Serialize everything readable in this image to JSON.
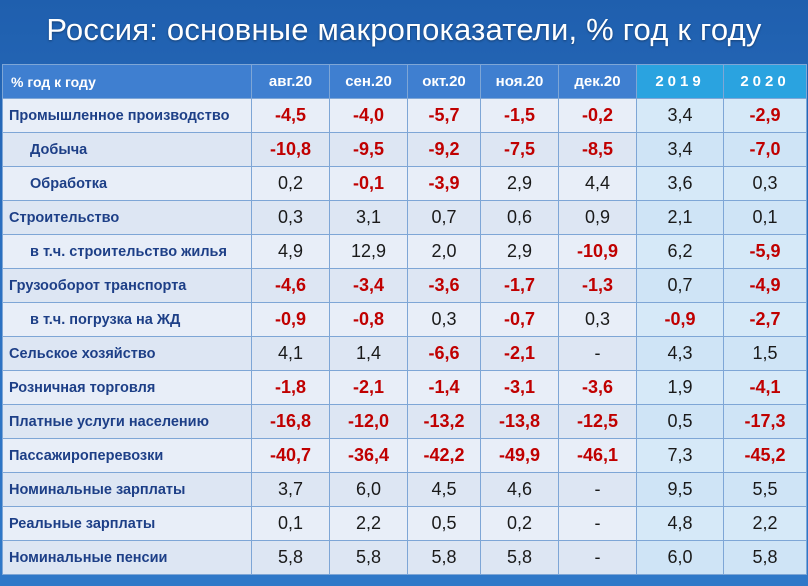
{
  "title": "Россия: основные макропоказатели, % год к году",
  "table": {
    "row_header": "% год к году",
    "columns": [
      "авг.20",
      "сен.20",
      "окт.20",
      "ноя.20",
      "дек.20",
      "2019",
      "2020"
    ],
    "year_columns": [
      5,
      6
    ],
    "rows": [
      {
        "label": "Промышленное производство",
        "indent": false,
        "values": [
          "-4,5",
          "-4,0",
          "-5,7",
          "-1,5",
          "-0,2",
          "3,4",
          "-2,9"
        ]
      },
      {
        "label": "Добыча",
        "indent": true,
        "values": [
          "-10,8",
          "-9,5",
          "-9,2",
          "-7,5",
          "-8,5",
          "3,4",
          "-7,0"
        ]
      },
      {
        "label": "Обработка",
        "indent": true,
        "values": [
          "0,2",
          "-0,1",
          "-3,9",
          "2,9",
          "4,4",
          "3,6",
          "0,3"
        ]
      },
      {
        "label": "Строительство",
        "indent": false,
        "values": [
          "0,3",
          "3,1",
          "0,7",
          "0,6",
          "0,9",
          "2,1",
          "0,1"
        ]
      },
      {
        "label": "в т.ч. строительство жилья",
        "indent": true,
        "values": [
          "4,9",
          "12,9",
          "2,0",
          "2,9",
          "-10,9",
          "6,2",
          "-5,9"
        ]
      },
      {
        "label": "Грузооборот транспорта",
        "indent": false,
        "values": [
          "-4,6",
          "-3,4",
          "-3,6",
          "-1,7",
          "-1,3",
          "0,7",
          "-4,9"
        ]
      },
      {
        "label": "в т.ч. погрузка на ЖД",
        "indent": true,
        "values": [
          "-0,9",
          "-0,8",
          "0,3",
          "-0,7",
          "0,3",
          "-0,9",
          "-2,7"
        ]
      },
      {
        "label": "Сельское хозяйство",
        "indent": false,
        "values": [
          "4,1",
          "1,4",
          "-6,6",
          "-2,1",
          "-",
          "4,3",
          "1,5"
        ]
      },
      {
        "label": "Розничная торговля",
        "indent": false,
        "values": [
          "-1,8",
          "-2,1",
          "-1,4",
          "-3,1",
          "-3,6",
          "1,9",
          "-4,1"
        ]
      },
      {
        "label": "Платные услуги населению",
        "indent": false,
        "values": [
          "-16,8",
          "-12,0",
          "-13,2",
          "-13,8",
          "-12,5",
          "0,5",
          "-17,3"
        ]
      },
      {
        "label": "Пассажироперевозки",
        "indent": false,
        "values": [
          "-40,7",
          "-36,4",
          "-42,2",
          "-49,9",
          "-46,1",
          "7,3",
          "-45,2"
        ]
      },
      {
        "label": "Номинальные зарплаты",
        "indent": false,
        "values": [
          "3,7",
          "6,0",
          "4,5",
          "4,6",
          "-",
          "9,5",
          "5,5"
        ]
      },
      {
        "label": "Реальные зарплаты",
        "indent": false,
        "values": [
          "0,1",
          "2,2",
          "0,5",
          "0,2",
          "-",
          "4,8",
          "2,2"
        ]
      },
      {
        "label": "Номинальные пенсии",
        "indent": false,
        "values": [
          "5,8",
          "5,8",
          "5,8",
          "5,8",
          "-",
          "6,0",
          "5,8"
        ]
      }
    ]
  },
  "colors": {
    "background": "#2a6fc0",
    "header": "#3f7fd0",
    "year_header": "#2aa3e0",
    "label_text": "#1d3f87",
    "negative": "#c00000",
    "positive": "#1a1a1a"
  }
}
